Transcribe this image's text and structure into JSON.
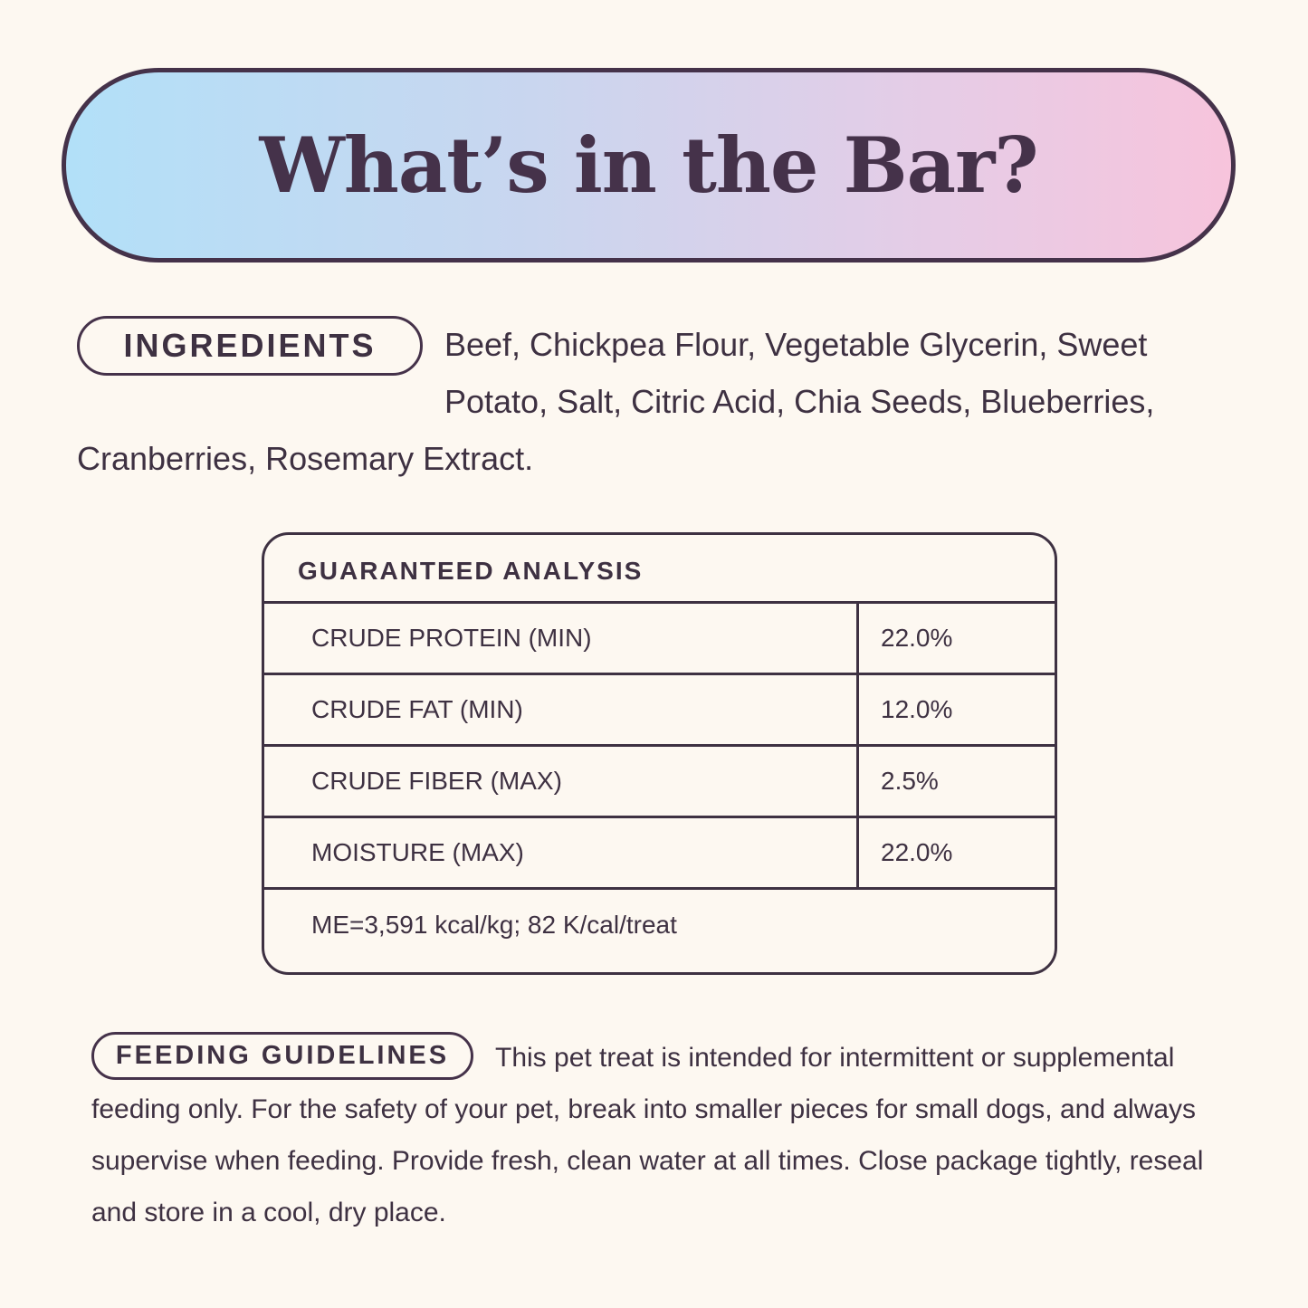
{
  "title": "What’s in the Bar?",
  "ingredients": {
    "label": "INGREDIENTS",
    "text": "Beef, Chickpea Flour, Vegetable Glycerin, Sweet Potato, Salt, Citric Acid, Chia Seeds, Blueberries, Cranberries, Rosemary Extract."
  },
  "analysis": {
    "title": "GUARANTEED ANALYSIS",
    "rows": [
      {
        "label": "CRUDE PROTEIN (MIN)",
        "value": "22.0%"
      },
      {
        "label": "CRUDE FAT (MIN)",
        "value": "12.0%"
      },
      {
        "label": "CRUDE FIBER (MAX)",
        "value": "2.5%"
      },
      {
        "label": "MOISTURE (MAX)",
        "value": "22.0%"
      }
    ],
    "footer": "ME=3,591 kcal/kg; 82 K/cal/treat"
  },
  "feeding": {
    "label": "FEEDING GUIDELINES",
    "text": "This pet treat is intended for intermittent or supple­mental feeding only. For the safety of your pet, break into smaller pieces for small dogs, and always supervise when feeding. Provide fresh, clean water at all times. Close package tightly, reseal and store in a cool, dry place."
  },
  "colors": {
    "text": "#3e3142",
    "background": "#fdf8f1",
    "gradient_start": "#b2e0f8",
    "gradient_end": "#f7c4dc"
  }
}
